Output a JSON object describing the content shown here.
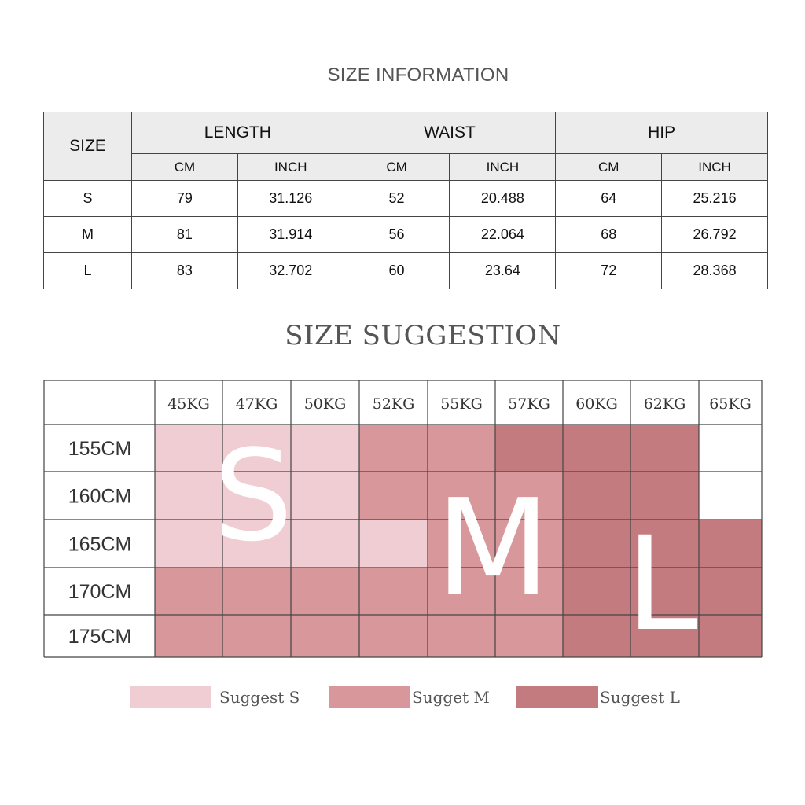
{
  "size_information": {
    "title": "SIZE INFORMATION",
    "size_header": "SIZE",
    "groups": [
      "LENGTH",
      "WAIST",
      "HIP"
    ],
    "units": [
      "CM",
      "INCH",
      "CM",
      "INCH",
      "CM",
      "INCH"
    ],
    "rows": [
      {
        "size": "S",
        "values": [
          "79",
          "31.126",
          "52",
          "20.488",
          "64",
          "25.216"
        ]
      },
      {
        "size": "M",
        "values": [
          "81",
          "31.914",
          "56",
          "22.064",
          "68",
          "26.792"
        ]
      },
      {
        "size": "L",
        "values": [
          "83",
          "32.702",
          "60",
          "23.64",
          "72",
          "28.368"
        ]
      }
    ]
  },
  "size_suggestion": {
    "title": "SIZE SUGGESTION",
    "weights": [
      "45KG",
      "47KG",
      "50KG",
      "52KG",
      "55KG",
      "57KG",
      "60KG",
      "62KG",
      "65KG"
    ],
    "heights": [
      "155CM",
      "160CM",
      "165CM",
      "170CM",
      "175CM"
    ],
    "grid": [
      [
        "S",
        "S",
        "S",
        "M",
        "M",
        "L",
        "L",
        "L",
        ""
      ],
      [
        "S",
        "S",
        "S",
        "M",
        "M",
        "M",
        "L",
        "L",
        ""
      ],
      [
        "S",
        "S",
        "S",
        "S",
        "M",
        "M",
        "L",
        "L",
        "L"
      ],
      [
        "M",
        "M",
        "M",
        "M",
        "M",
        "M",
        "L",
        "L",
        "L"
      ],
      [
        "M",
        "M",
        "M",
        "M",
        "M",
        "M",
        "L",
        "L",
        "L"
      ]
    ],
    "big_letters": {
      "S": "S",
      "M": "M",
      "L": "L"
    },
    "colors": {
      "S": "#f0cdd3",
      "M": "#d8979a",
      "L": "#c47b80",
      "empty": "#ffffff",
      "grid_line": "#444444",
      "header_text": "#333333",
      "big_letter": "#ffffff"
    },
    "legend": [
      {
        "key": "S",
        "label": "Suggest S"
      },
      {
        "key": "M",
        "label": "Sugget M"
      },
      {
        "key": "L",
        "label": "Suggest L"
      }
    ]
  }
}
